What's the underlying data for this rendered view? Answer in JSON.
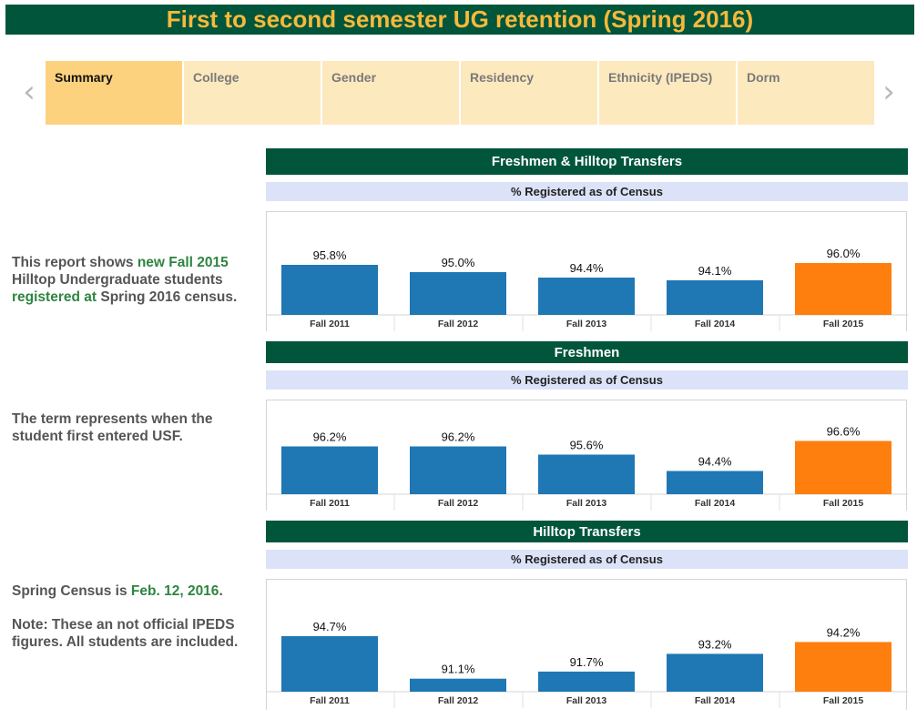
{
  "title": "First to second semester UG retention (Spring 2016)",
  "nav": {
    "prev_icon": "chevron-left-icon",
    "next_icon": "chevron-right-icon"
  },
  "tabs": [
    {
      "label": "Summary",
      "active": true
    },
    {
      "label": "College",
      "active": false
    },
    {
      "label": "Gender",
      "active": false
    },
    {
      "label": "Residency",
      "active": false
    },
    {
      "label": "Ethnicity (IPEDS)",
      "active": false
    },
    {
      "label": "Dorm",
      "active": false
    }
  ],
  "side": {
    "p1": {
      "a": "This report shows ",
      "b": "new Fall 2015",
      "c": " Hilltop Undergraduate students ",
      "d": "registered at",
      "e": " Spring 2016 census."
    },
    "p2": "The term represents when the student first entered USF.",
    "p3": {
      "a": "Spring Census is ",
      "b": "Feb. 12, 2016",
      "c": "."
    },
    "p4": "Note: These an not official IPEDS figures. All students are included."
  },
  "colors": {
    "bar": "#1f77b4",
    "highlight": "#ff7f0e",
    "header": "#00553b",
    "title_text": "#f6b93b",
    "accent_text": "#2e8540"
  },
  "chart_data": [
    {
      "type": "bar",
      "title": "Freshmen & Hilltop Transfers",
      "subtitle": "% Registered as of Census",
      "categories": [
        "Fall 2011",
        "Fall 2012",
        "Fall 2013",
        "Fall 2014",
        "Fall 2015"
      ],
      "values": [
        95.8,
        95.0,
        94.4,
        94.1,
        96.0
      ],
      "labels": [
        "95.8%",
        "95.0%",
        "94.4%",
        "94.1%",
        "96.0%"
      ],
      "highlight_index": 4
    },
    {
      "type": "bar",
      "title": "Freshmen",
      "subtitle": "% Registered as of Census",
      "categories": [
        "Fall 2011",
        "Fall 2012",
        "Fall 2013",
        "Fall 2014",
        "Fall 2015"
      ],
      "values": [
        96.2,
        96.2,
        95.6,
        94.4,
        96.6
      ],
      "labels": [
        "96.2%",
        "96.2%",
        "95.6%",
        "94.4%",
        "96.6%"
      ],
      "highlight_index": 4
    },
    {
      "type": "bar",
      "title": "Hilltop Transfers",
      "subtitle": "% Registered as of Census",
      "categories": [
        "Fall 2011",
        "Fall 2012",
        "Fall 2013",
        "Fall 2014",
        "Fall 2015"
      ],
      "values": [
        94.7,
        91.1,
        91.7,
        93.2,
        94.2
      ],
      "labels": [
        "94.7%",
        "91.1%",
        "91.7%",
        "93.2%",
        "94.2%"
      ],
      "highlight_index": 4
    }
  ]
}
